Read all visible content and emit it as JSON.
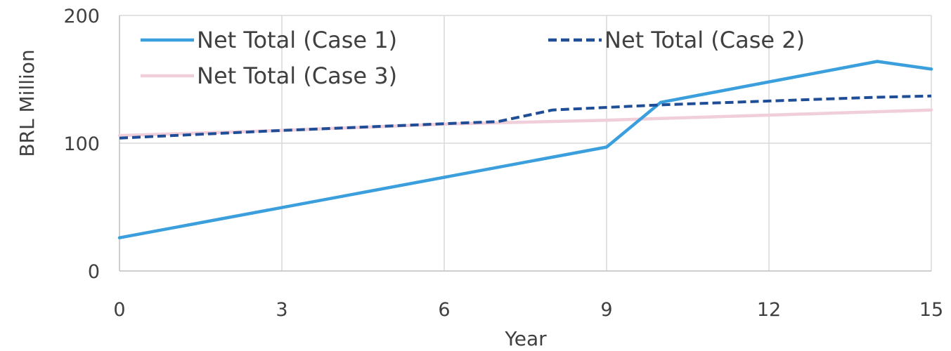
{
  "chart_data": {
    "type": "line",
    "xlabel": "Year",
    "ylabel": "BRL Million",
    "xlim": [
      0,
      15
    ],
    "ylim": [
      0,
      200
    ],
    "x_ticks": [
      "0",
      "3",
      "6",
      "9",
      "12",
      "15"
    ],
    "y_ticks": [
      "0",
      "100",
      "200"
    ],
    "grid": true,
    "legend_position": "top-left",
    "series": [
      {
        "name": "Net Total (Case 1)",
        "color": "#3A9FDC",
        "dash": "solid",
        "x": [
          0,
          9,
          10,
          14,
          15
        ],
        "y": [
          26,
          97,
          132,
          164,
          158
        ]
      },
      {
        "name": "Net Total (Case 2)",
        "color": "#1F4E96",
        "dash": "dashed",
        "x": [
          0,
          3,
          7,
          8,
          9,
          10,
          12,
          14,
          15
        ],
        "y": [
          104,
          110,
          117,
          126,
          128,
          130,
          133,
          136,
          137
        ]
      },
      {
        "name": "Net Total (Case 3)",
        "color": "#F0CFDA",
        "dash": "solid",
        "x": [
          0,
          3,
          6,
          9,
          12,
          15
        ],
        "y": [
          106,
          110,
          115,
          118,
          122,
          126
        ]
      }
    ]
  }
}
